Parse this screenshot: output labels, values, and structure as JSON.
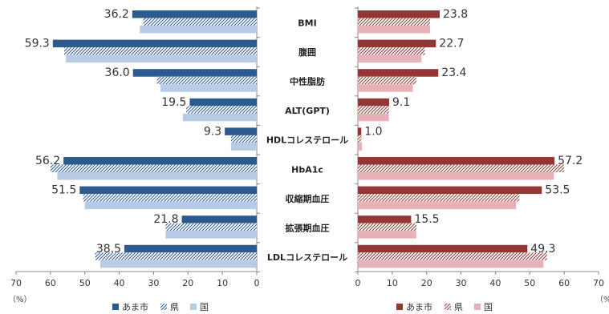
{
  "chart_data": [
    {
      "type": "bar",
      "orientation": "horizontal",
      "x_direction": "reversed",
      "categories": [
        "BMI",
        "腹囲",
        "中性脂肪",
        "ALT(GPT)",
        "HDLコレステロール",
        "HbA1c",
        "収縮期血圧",
        "拡張期血圧",
        "LDLコレステロール"
      ],
      "series": [
        {
          "name": "あま市",
          "values": [
            36.2,
            59.3,
            36.0,
            19.5,
            9.3,
            56.2,
            51.5,
            21.8,
            38.5
          ],
          "color": "#2E5B8F",
          "pattern": "solid"
        },
        {
          "name": "県",
          "values": [
            33.0,
            56.0,
            29.0,
            20.5,
            7.5,
            60.0,
            50.5,
            26.5,
            47.0
          ],
          "color": "#2E5B8F",
          "pattern": "hatch"
        },
        {
          "name": "国",
          "values": [
            34.0,
            55.5,
            28.0,
            21.5,
            7.5,
            58.0,
            50.0,
            26.5,
            45.5
          ],
          "color": "#B7CBE4",
          "pattern": "solid"
        }
      ],
      "data_labels_series": "あま市",
      "xlim": [
        0,
        70
      ],
      "xticks": [
        "70",
        "60",
        "50",
        "40",
        "30",
        "20",
        "10",
        "0"
      ],
      "unit_label": "（%）",
      "legend": [
        {
          "name": "あま市",
          "icon": "solid-square"
        },
        {
          "name": "県",
          "icon": "hatch-square"
        },
        {
          "name": "国",
          "icon": "light-square"
        }
      ],
      "legend_position": "bottom",
      "grid": false
    },
    {
      "type": "bar",
      "orientation": "horizontal",
      "categories": [
        "BMI",
        "腹囲",
        "中性脂肪",
        "ALT(GPT)",
        "HDLコレステロール",
        "HbA1c",
        "収縮期血圧",
        "拡張期血圧",
        "LDLコレステロール"
      ],
      "series": [
        {
          "name": "あま市",
          "values": [
            23.8,
            22.7,
            23.4,
            9.1,
            1.0,
            57.2,
            53.5,
            15.5,
            49.3
          ],
          "color": "#943634",
          "pattern": "solid"
        },
        {
          "name": "県",
          "values": [
            21.0,
            19.5,
            17.0,
            9.0,
            1.0,
            60.0,
            47.0,
            17.0,
            55.0
          ],
          "color": "#943634",
          "pattern": "hatch"
        },
        {
          "name": "国",
          "values": [
            21.0,
            18.5,
            16.0,
            9.0,
            1.2,
            57.0,
            46.0,
            17.0,
            54.0
          ],
          "color": "#E6B2B8",
          "pattern": "solid"
        }
      ],
      "data_labels_series": "あま市",
      "xlim": [
        0,
        70
      ],
      "xticks": [
        "0",
        "10",
        "20",
        "30",
        "40",
        "50",
        "60",
        "70"
      ],
      "unit_label": "（%）",
      "legend": [
        {
          "name": "あま市",
          "icon": "solid-square"
        },
        {
          "name": "県",
          "icon": "hatch-square"
        },
        {
          "name": "国",
          "icon": "light-square"
        }
      ],
      "legend_position": "bottom",
      "grid": false
    }
  ]
}
